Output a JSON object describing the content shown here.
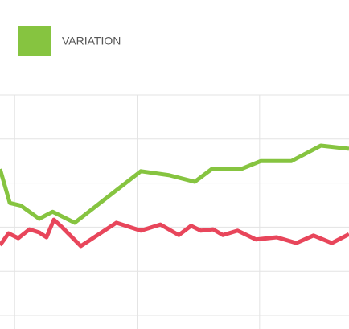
{
  "chart_data": {
    "type": "line",
    "legend": "top-left",
    "grid": true,
    "xlim": [
      0.88,
      3.73
    ],
    "xticks": [
      1,
      2,
      3
    ],
    "ylim": [
      0,
      5
    ],
    "yticks": [
      0,
      1,
      2,
      3,
      4,
      5
    ],
    "series": [
      {
        "name": "VARIATION",
        "color": "#86c440",
        "x": [
          0.88,
          0.96,
          1.05,
          1.2,
          1.31,
          1.49,
          2.03,
          2.26,
          2.47,
          2.61,
          2.85,
          3.01,
          3.26,
          3.5,
          3.73
        ],
        "values": [
          3.32,
          2.55,
          2.49,
          2.19,
          2.35,
          2.1,
          3.27,
          3.18,
          3.03,
          3.32,
          3.32,
          3.5,
          3.5,
          3.85,
          3.78
        ]
      },
      {
        "color": "#e8465b",
        "x": [
          0.88,
          0.95,
          1.03,
          1.12,
          1.2,
          1.26,
          1.32,
          1.39,
          1.54,
          1.83,
          2.03,
          2.19,
          2.34,
          2.44,
          2.52,
          2.62,
          2.7,
          2.82,
          2.97,
          3.14,
          3.3,
          3.44,
          3.59,
          3.73
        ],
        "values": [
          1.59,
          1.86,
          1.75,
          1.95,
          1.88,
          1.77,
          2.17,
          1.99,
          1.57,
          2.1,
          1.92,
          2.06,
          1.82,
          2.03,
          1.92,
          1.95,
          1.82,
          1.92,
          1.72,
          1.77,
          1.64,
          1.81,
          1.64,
          1.84
        ]
      }
    ]
  }
}
